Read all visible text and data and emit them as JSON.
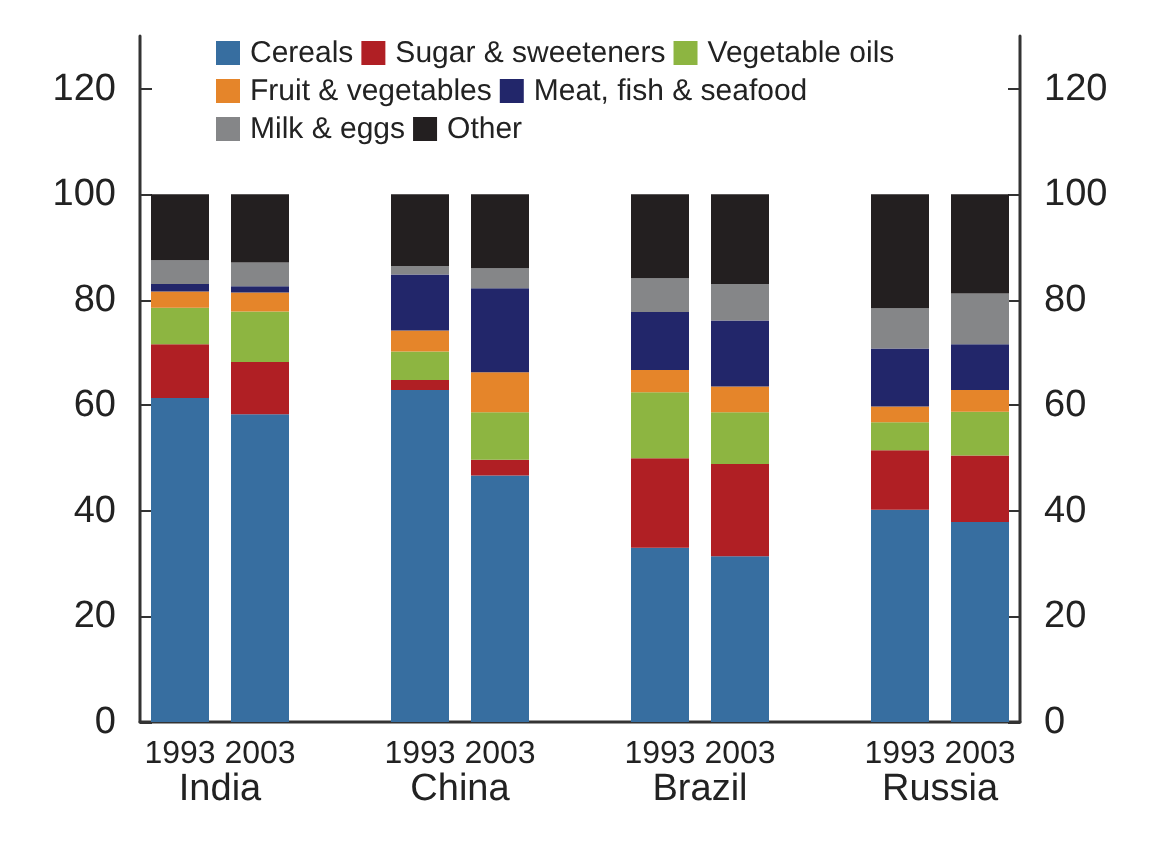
{
  "chart_data": {
    "type": "bar",
    "stacked": true,
    "categories": [
      "1993",
      "2003",
      null,
      "1993",
      "2003",
      null,
      "1993",
      "2003",
      null,
      "1993",
      "2003"
    ],
    "series": [
      {
        "name": "Cereals",
        "color": "#376ea0",
        "values": [
          61.4,
          58.3,
          null,
          62.9,
          46.7,
          null,
          33.0,
          31.4,
          null,
          40.2,
          37.9
        ]
      },
      {
        "name": "Sugar & sweeteners",
        "color": "#b01f24",
        "values": [
          10.2,
          9.9,
          null,
          1.9,
          3.0,
          null,
          17.0,
          17.5,
          null,
          11.3,
          12.6
        ]
      },
      {
        "name": "Vegetable oils",
        "color": "#8db541",
        "values": [
          6.9,
          9.6,
          null,
          5.4,
          9.0,
          null,
          12.5,
          9.8,
          null,
          5.3,
          8.3
        ]
      },
      {
        "name": "Fruit & vegetables",
        "color": "#e5852a",
        "values": [
          3.1,
          3.6,
          null,
          4.0,
          7.6,
          null,
          4.2,
          4.9,
          null,
          3.0,
          4.1
        ]
      },
      {
        "name": "Meat, fish & seafood",
        "color": "#22266a",
        "values": [
          1.4,
          1.2,
          null,
          10.6,
          15.9,
          null,
          11.0,
          12.5,
          null,
          11.0,
          8.7
        ]
      },
      {
        "name": "Milk & eggs",
        "color": "#858688",
        "values": [
          4.5,
          4.5,
          null,
          1.6,
          3.8,
          null,
          6.4,
          6.9,
          null,
          7.6,
          9.6
        ]
      },
      {
        "name": "Other",
        "color": "#231f20",
        "values": [
          12.5,
          12.9,
          null,
          13.6,
          14.0,
          null,
          15.9,
          17.0,
          null,
          21.6,
          18.8
        ]
      }
    ],
    "annotations": [
      "India",
      "China",
      "Brazil",
      "Russia"
    ],
    "ylim": [
      0,
      130
    ],
    "yticks": [
      0,
      20,
      40,
      60,
      80,
      100,
      120
    ],
    "y2lim": [
      0,
      130
    ],
    "y2ticks": [
      0,
      20,
      40,
      60,
      80,
      100,
      120
    ],
    "grid": false,
    "legend": "top left"
  }
}
